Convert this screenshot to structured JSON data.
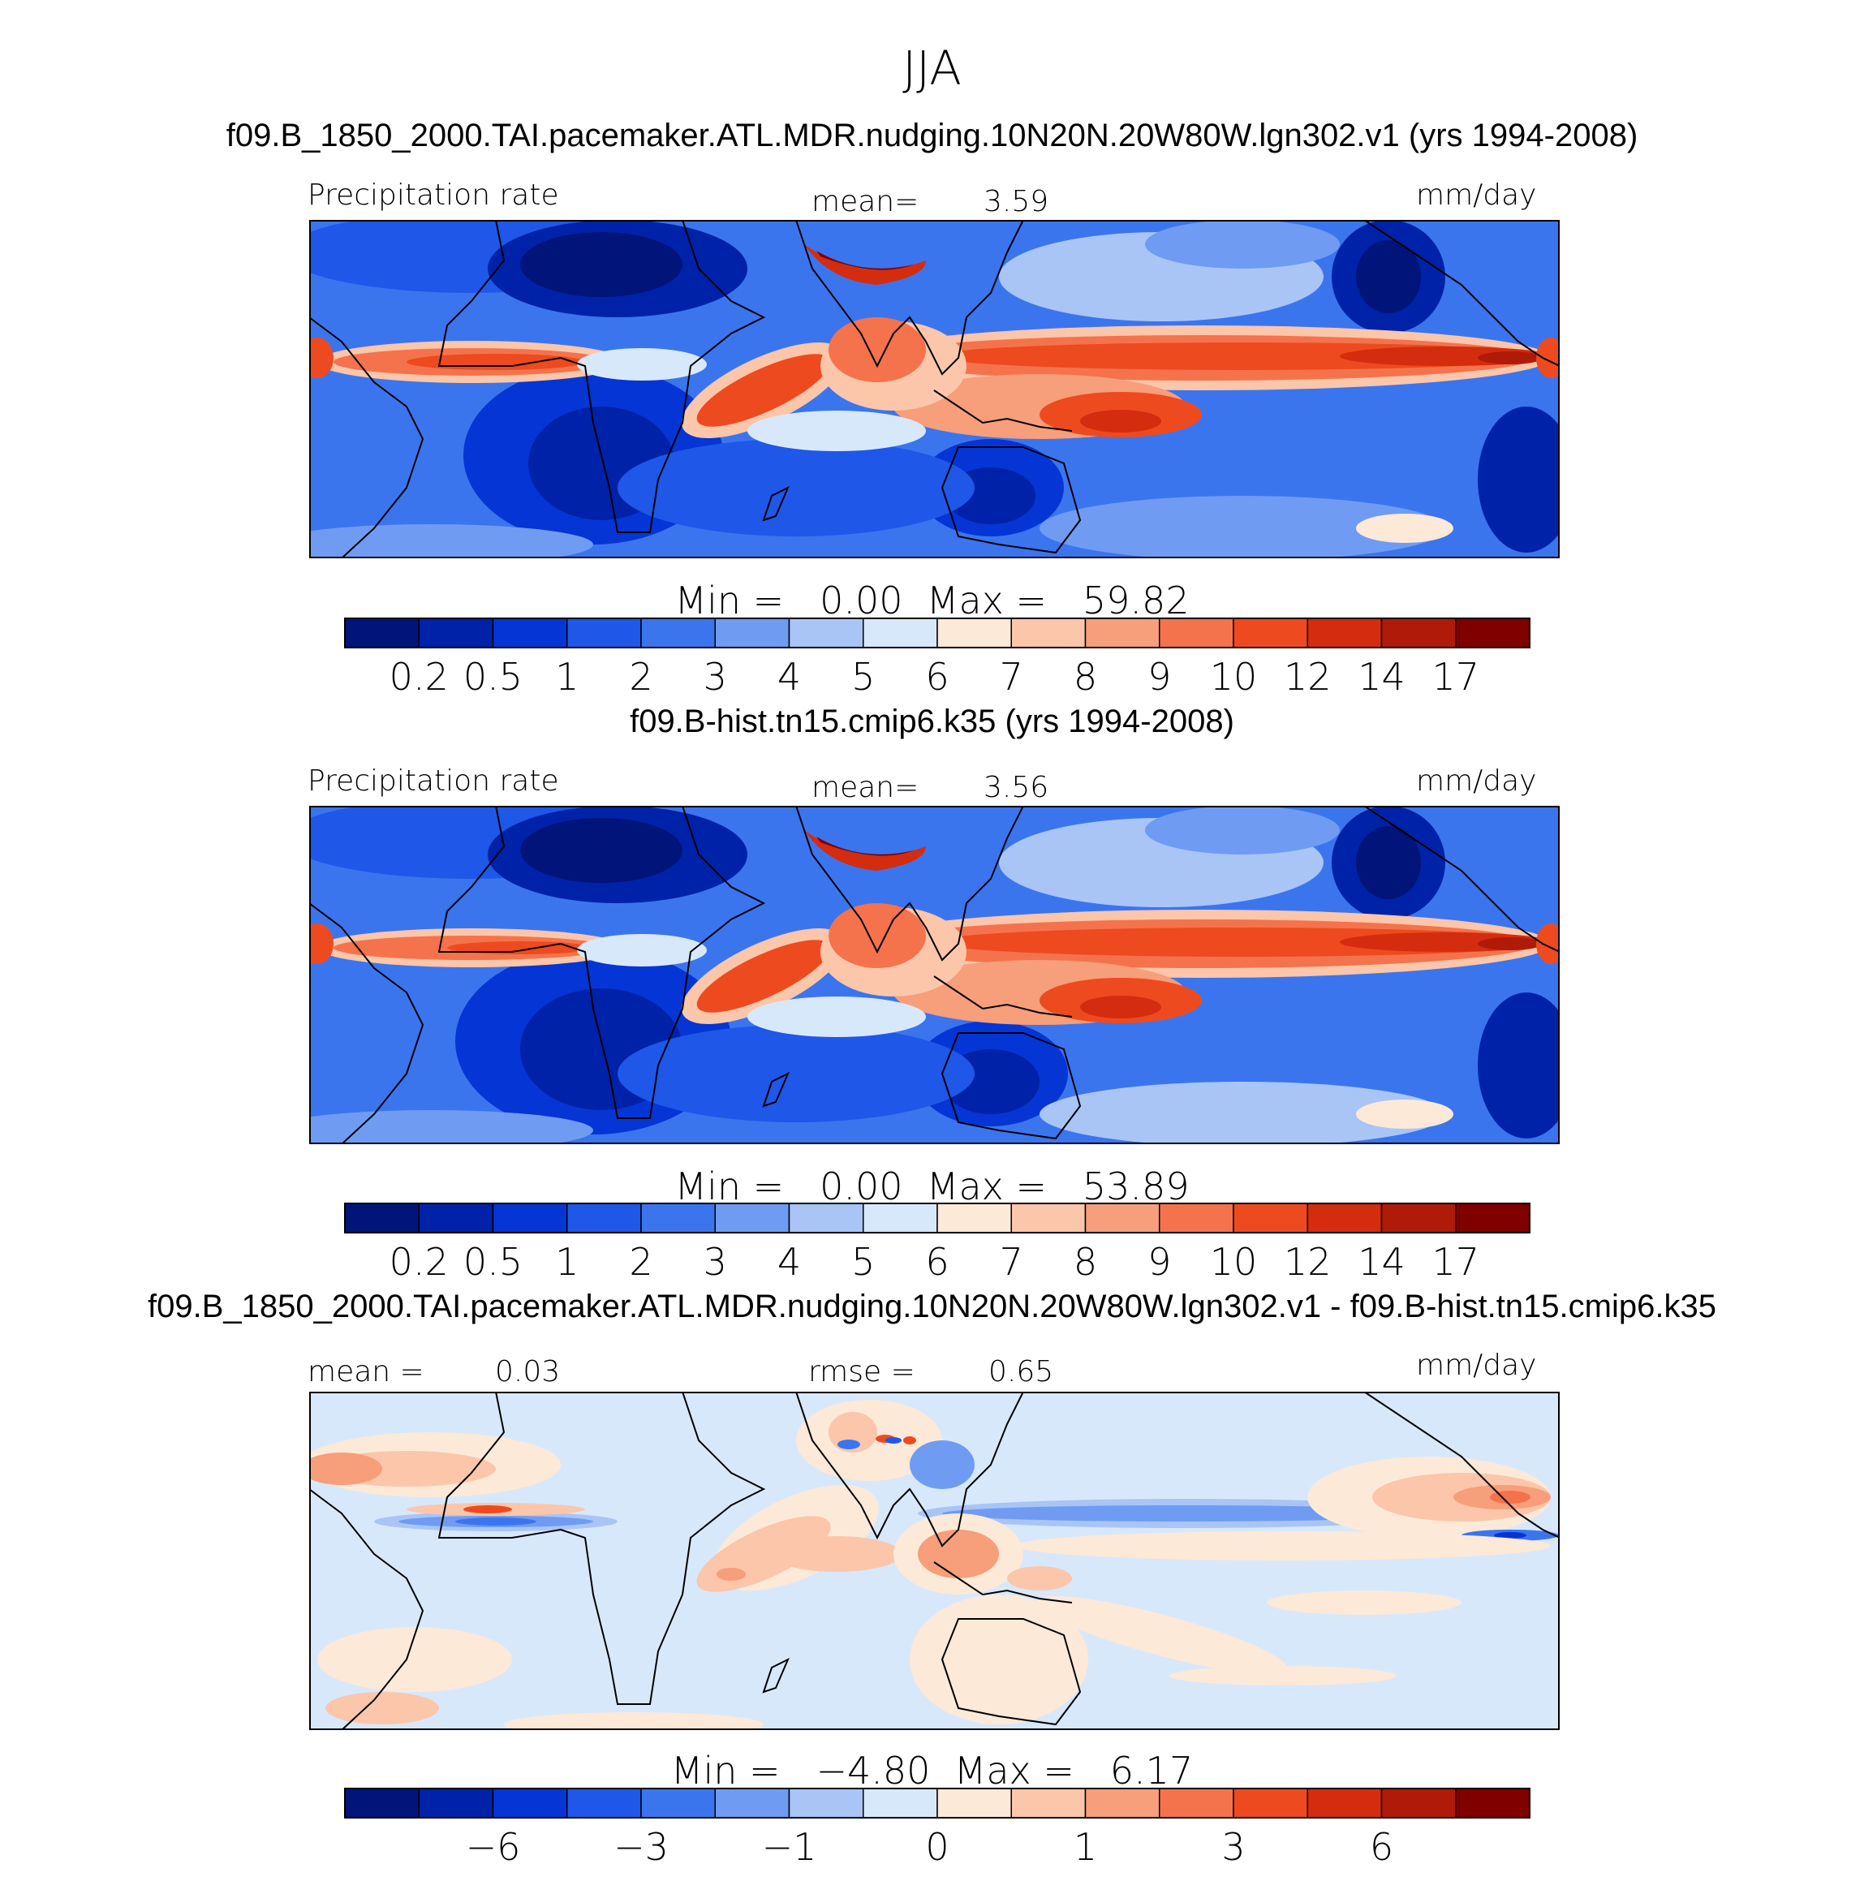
{
  "title": "JJA",
  "units": "mm/day",
  "colors": [
    "#00147a",
    "#0022a8",
    "#0535d4",
    "#1f57e8",
    "#3b75ee",
    "#6f9bf2",
    "#a8c5f6",
    "#d8e8fb",
    "#fde9d8",
    "#fbc6aa",
    "#f79e7a",
    "#f4734c",
    "#ee4a1f",
    "#d42c0e",
    "#b01a08",
    "#800000"
  ],
  "panels": [
    {
      "case_title": "f09.B_1850_2000.TAI.pacemaker.ATL.MDR.nudging.10N20N.20W80W.lgn302.v1 (yrs 1994-2008)",
      "left_label": "Precipitation rate",
      "stat_label": "mean=",
      "stat_value": "3.59",
      "units": "mm/day",
      "min_label": "Min  =",
      "min_value": "0.00",
      "max_label": "Max  =",
      "max_value": "59.82",
      "levels": [
        "0.2",
        "0.5",
        "1",
        "2",
        "3",
        "4",
        "5",
        "6",
        "7",
        "8",
        "9",
        "10",
        "12",
        "14",
        "17"
      ]
    },
    {
      "case_title": "f09.B-hist.tn15.cmip6.k35 (yrs 1994-2008)",
      "left_label": "Precipitation rate",
      "stat_label": "mean=",
      "stat_value": "3.56",
      "units": "mm/day",
      "min_label": "Min  =",
      "min_value": "0.00",
      "max_label": "Max  =",
      "max_value": "53.89",
      "levels": [
        "0.2",
        "0.5",
        "1",
        "2",
        "3",
        "4",
        "5",
        "6",
        "7",
        "8",
        "9",
        "10",
        "12",
        "14",
        "17"
      ]
    },
    {
      "case_title": "f09.B_1850_2000.TAI.pacemaker.ATL.MDR.nudging.10N20N.20W80W.lgn302.v1 - f09.B-hist.tn15.cmip6.k35",
      "left_label": "mean =",
      "left_value": "0.03",
      "stat_label": "rmse =",
      "stat_value": "0.65",
      "units": "mm/day",
      "min_label": "Min  =",
      "min_value": "−4.80",
      "max_label": "Max  =",
      "max_value": "6.17",
      "ticks": [
        {
          "label": "−6",
          "boundary": 2
        },
        {
          "label": "−3",
          "boundary": 4
        },
        {
          "label": "−1",
          "boundary": 6
        },
        {
          "label": "0",
          "boundary": 8
        },
        {
          "label": "1",
          "boundary": 10
        },
        {
          "label": "3",
          "boundary": 12
        },
        {
          "label": "6",
          "boundary": 14
        }
      ]
    }
  ],
  "chart_data": [
    {
      "type": "heatmap",
      "title": "f09.B_1850_2000.TAI.pacemaker.ATL.MDR.nudging.10N20N.20W80W.lgn302.v1 (yrs 1994-2008)",
      "variable": "Precipitation rate",
      "units": "mm/day",
      "mean": 3.59,
      "min": 0.0,
      "max": 59.82,
      "contour_levels": [
        0.2,
        0.5,
        1,
        2,
        3,
        4,
        5,
        6,
        7,
        8,
        9,
        10,
        12,
        14,
        17
      ]
    },
    {
      "type": "heatmap",
      "title": "f09.B-hist.tn15.cmip6.k35 (yrs 1994-2008)",
      "variable": "Precipitation rate",
      "units": "mm/day",
      "mean": 3.56,
      "min": 0.0,
      "max": 53.89,
      "contour_levels": [
        0.2,
        0.5,
        1,
        2,
        3,
        4,
        5,
        6,
        7,
        8,
        9,
        10,
        12,
        14,
        17
      ]
    },
    {
      "type": "heatmap",
      "title": "f09.B_1850_2000.TAI.pacemaker.ATL.MDR.nudging.10N20N.20W80W.lgn302.v1 - f09.B-hist.tn15.cmip6.k35",
      "units": "mm/day",
      "mean": 0.03,
      "rmse": 0.65,
      "min": -4.8,
      "max": 6.17,
      "labeled_ticks": [
        -6,
        -3,
        -1,
        0,
        1,
        3,
        6
      ]
    }
  ]
}
